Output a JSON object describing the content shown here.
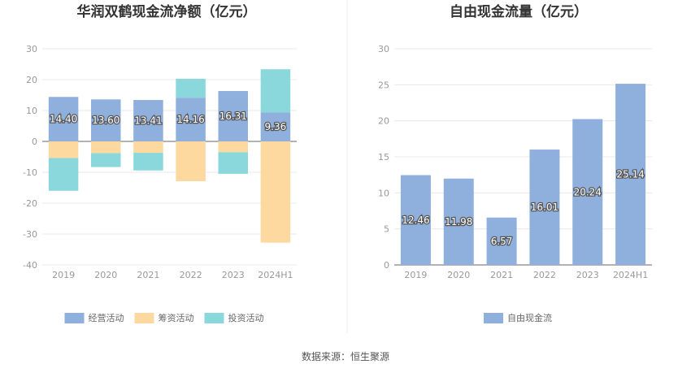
{
  "source": "数据来源：恒生聚源",
  "chart_data": [
    {
      "type": "bar",
      "stacked": true,
      "title": "华润双鹤现金流净额（亿元）",
      "categories": [
        "2019",
        "2020",
        "2021",
        "2022",
        "2023",
        "2024H1"
      ],
      "ylim": [
        -40,
        30
      ],
      "yticks": [
        30,
        20,
        10,
        0,
        -10,
        -20,
        -30,
        -40
      ],
      "grid": true,
      "legend_position": "bottom",
      "series": [
        {
          "name": "经营活动",
          "color": "#8fafdc",
          "values": [
            14.4,
            13.6,
            13.41,
            14.16,
            16.31,
            9.36
          ],
          "labels": [
            "14.40",
            "13.60",
            "13.41",
            "14.16",
            "16.31",
            "9.36"
          ]
        },
        {
          "name": "筹资活动",
          "color": "#fdd9a0",
          "values": [
            -5.4,
            -3.8,
            -3.7,
            -12.9,
            -3.5,
            -32.8
          ]
        },
        {
          "name": "投资活动",
          "color": "#8ad8dc",
          "values": [
            -10.6,
            -4.5,
            -5.7,
            6.1,
            -7.0,
            14.0
          ]
        }
      ]
    },
    {
      "type": "bar",
      "title": "自由现金流量（亿元）",
      "categories": [
        "2019",
        "2020",
        "2021",
        "2022",
        "2023",
        "2024H1"
      ],
      "ylim": [
        0,
        30
      ],
      "yticks": [
        30,
        25,
        20,
        15,
        10,
        5,
        0
      ],
      "grid": true,
      "legend_position": "bottom",
      "series": [
        {
          "name": "自由现金流",
          "color": "#8fafdc",
          "values": [
            12.46,
            11.98,
            6.57,
            16.01,
            20.24,
            25.14
          ],
          "labels": [
            "12.46",
            "11.98",
            "6.57",
            "16.01",
            "20.24",
            "25.14"
          ]
        }
      ]
    }
  ]
}
